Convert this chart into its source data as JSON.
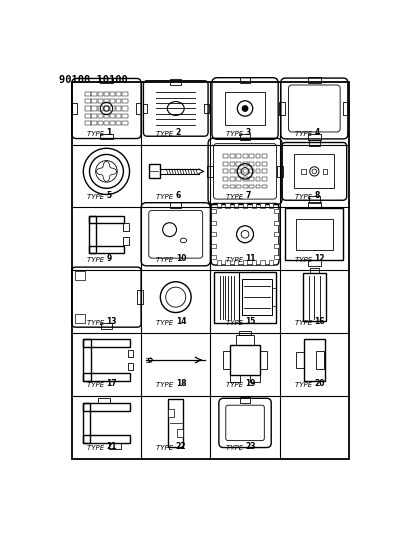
{
  "title": "90108 10100",
  "background_color": "#ffffff",
  "line_color": "#000000",
  "rows": 6,
  "cols": 4,
  "fig_width": 3.94,
  "fig_height": 5.33,
  "dpi": 100,
  "types": [
    "TYPE 1",
    "TYPE 2",
    "TYPE 3",
    "TYPE 4",
    "TYPE 5",
    "TYPE 6",
    "TYPE 7",
    "TYPE 8",
    "TYPE 9",
    "TYPE 10",
    "TYPE 11",
    "TYPE 12",
    "TYPE 13",
    "TYPE 14",
    "TYPE 15",
    "TYPE 16",
    "TYPE 17",
    "TYPE 18",
    "TYPE 19",
    "TYPE 20",
    "TYPE 21",
    "TYPE 22",
    "TYPE 23",
    ""
  ]
}
